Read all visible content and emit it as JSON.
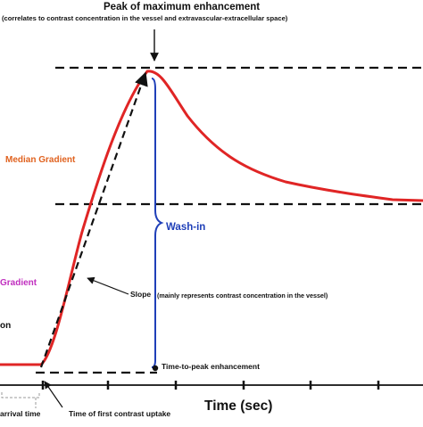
{
  "labels": {
    "title": "Peak of maximum enhancement",
    "subtitle": "(correlates to contrast concentration in the vessel and extravascular-extracellular space)",
    "median_gradient": "Median Gradient",
    "gradient": "Gradient",
    "on_fragment": "on",
    "wash_in": "Wash-in",
    "slope": "Slope",
    "slope_note": "(mainly represents contrast concentration in the vessel)",
    "time_to_peak": "Time-to-peak enhancement",
    "arrival_time": "arrival time",
    "first_uptake": "Time of first contrast uptake",
    "x_axis": "Time (sec)"
  },
  "colors": {
    "curve": "#e02525",
    "wash_in": "#1f3fb8",
    "median_gradient": "#e0621f",
    "gradient": "#c02fbf",
    "ink": "#111111",
    "grid": "#999999"
  }
}
